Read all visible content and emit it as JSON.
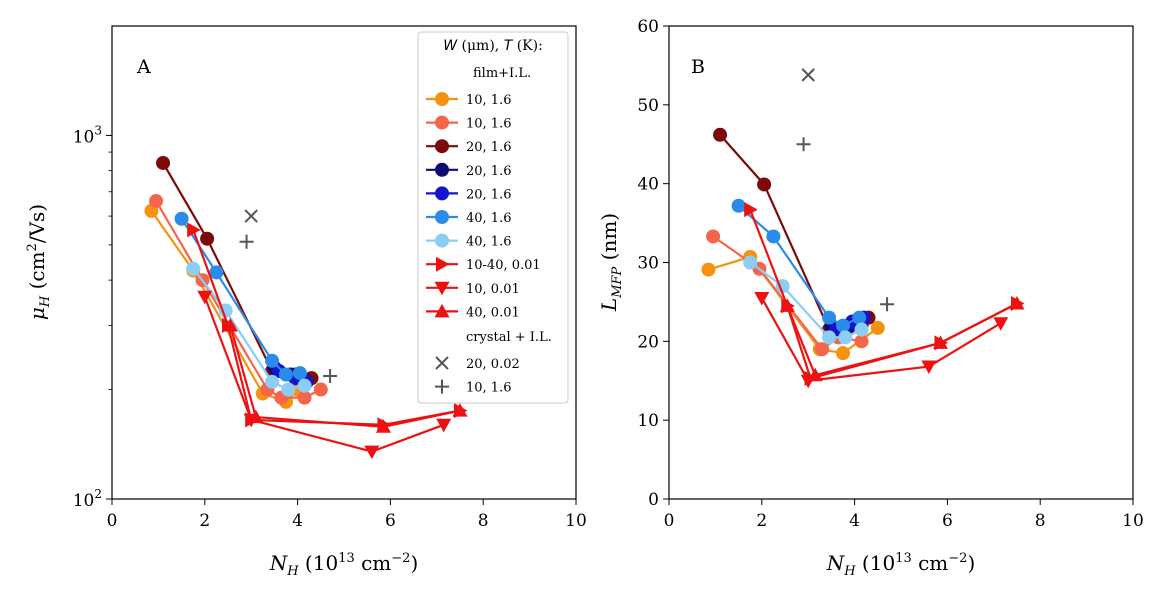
{
  "chart_data": [
    {
      "type": "line",
      "panel_label": "A",
      "xlabel": "N_H (10^13 cm^-2)",
      "ylabel": "μ_H (cm²/Vs)",
      "xlim": [
        0,
        10
      ],
      "ylim": [
        100,
        2000
      ],
      "yscale": "log",
      "x_ticks": [
        "0",
        "2",
        "4",
        "6",
        "8",
        "10"
      ],
      "y_ticks": [
        {
          "value": 100,
          "base": "10",
          "exp": "2"
        },
        {
          "value": 1000,
          "base": "10",
          "exp": "3"
        }
      ],
      "grid": false,
      "legend_position": "top-right",
      "legend": {
        "title": "W (μm), T (K):",
        "group1_label": "film+I.L.",
        "group2_label": "crystal + I.L."
      },
      "series": [
        {
          "name": "10, 1.6",
          "color": "#f59310",
          "marker": "circle",
          "x": [
            0.85,
            1.75,
            3.25,
            3.75,
            4.0
          ],
          "y": [
            620,
            425,
            195,
            185,
            200
          ]
        },
        {
          "name": "10, 1.6",
          "color": "#f5654c",
          "marker": "circle",
          "x": [
            0.95,
            1.95,
            3.35,
            3.65,
            4.15,
            4.5
          ],
          "y": [
            660,
            400,
            200,
            190,
            190,
            200
          ]
        },
        {
          "name": "20, 1.6",
          "color": "#7d0a0a",
          "marker": "circle",
          "x": [
            1.1,
            2.05,
            3.45,
            3.95,
            4.3
          ],
          "y": [
            840,
            520,
            225,
            220,
            215
          ]
        },
        {
          "name": "20, 1.6",
          "color": "#0d0d70",
          "marker": "circle",
          "x": [
            3.5,
            3.85,
            4.1
          ],
          "y": [
            230,
            220,
            215
          ]
        },
        {
          "name": "20, 1.6",
          "color": "#1414cc",
          "marker": "circle",
          "x": [
            3.6,
            3.95,
            4.2
          ],
          "y": [
            225,
            215,
            210
          ]
        },
        {
          "name": "40, 1.6",
          "color": "#2a8ce8",
          "marker": "circle",
          "x": [
            1.5,
            2.25,
            3.45,
            3.75,
            4.05
          ],
          "y": [
            590,
            420,
            240,
            220,
            222
          ]
        },
        {
          "name": "40, 1.6",
          "color": "#8ccdf5",
          "marker": "circle",
          "x": [
            1.75,
            2.45,
            3.45,
            3.8,
            4.15
          ],
          "y": [
            430,
            330,
            210,
            200,
            205
          ]
        },
        {
          "name": "10-40, 0.01",
          "color": "#ee1111",
          "marker": "triangle-right",
          "x": [
            1.75,
            2.5,
            3.0,
            5.85,
            7.5
          ],
          "y": [
            550,
            300,
            165,
            160,
            175
          ]
        },
        {
          "name": "10, 0.01",
          "color": "#ee1111",
          "marker": "triangle-down",
          "x": [
            2.0,
            3.0,
            5.6,
            7.15
          ],
          "y": [
            360,
            165,
            135,
            160
          ]
        },
        {
          "name": "40, 0.01",
          "color": "#ee1111",
          "marker": "triangle-up",
          "x": [
            2.55,
            3.1,
            5.85,
            7.5
          ],
          "y": [
            300,
            168,
            158,
            175
          ]
        },
        {
          "name": "20, 0.02",
          "color": "#555555",
          "marker": "x",
          "line": false,
          "x": [
            3.0
          ],
          "y": [
            600
          ]
        },
        {
          "name": "10, 1.6",
          "color": "#555555",
          "marker": "plus",
          "line": false,
          "x": [
            2.9,
            4.7
          ],
          "y": [
            510,
            218
          ]
        }
      ]
    },
    {
      "type": "line",
      "panel_label": "B",
      "xlabel": "N_H (10^13 cm^-2)",
      "ylabel": "L_MFP (nm)",
      "xlim": [
        0,
        10
      ],
      "ylim": [
        0,
        60
      ],
      "x_ticks": [
        "0",
        "2",
        "4",
        "6",
        "8",
        "10"
      ],
      "y_ticks": [
        "0",
        "10",
        "20",
        "30",
        "40",
        "50",
        "60"
      ],
      "grid": false,
      "series": [
        {
          "name": "10, 1.6",
          "color": "#f59310",
          "marker": "circle",
          "x": [
            0.85,
            1.75,
            3.25,
            3.75,
            4.5
          ],
          "y": [
            29.1,
            30.7,
            19.0,
            18.5,
            21.7
          ]
        },
        {
          "name": "10, 1.6",
          "color": "#f5654c",
          "marker": "circle",
          "x": [
            0.95,
            1.95,
            3.3,
            3.65,
            4.15
          ],
          "y": [
            33.3,
            29.2,
            19.0,
            20.5,
            20.0
          ]
        },
        {
          "name": "20, 1.6",
          "color": "#7d0a0a",
          "marker": "circle",
          "x": [
            1.1,
            2.05,
            3.45,
            3.95,
            4.3
          ],
          "y": [
            46.2,
            39.9,
            21.5,
            22.5,
            23.0
          ]
        },
        {
          "name": "20, 1.6",
          "color": "#0d0d70",
          "marker": "circle",
          "x": [
            3.5,
            3.85,
            4.15
          ],
          "y": [
            22.0,
            21.5,
            22.0
          ]
        },
        {
          "name": "20, 1.6",
          "color": "#1414cc",
          "marker": "circle",
          "x": [
            3.6,
            3.95,
            4.2
          ],
          "y": [
            21.5,
            22.5,
            23.0
          ]
        },
        {
          "name": "40, 1.6",
          "color": "#2a8ce8",
          "marker": "circle",
          "x": [
            1.5,
            2.25,
            3.45,
            3.75,
            4.1
          ],
          "y": [
            37.2,
            33.3,
            23.0,
            22.0,
            23.0
          ]
        },
        {
          "name": "40, 1.6",
          "color": "#8ccdf5",
          "marker": "circle",
          "x": [
            1.75,
            2.45,
            3.45,
            3.8,
            4.15
          ],
          "y": [
            30.0,
            27.0,
            20.5,
            20.5,
            21.5
          ]
        },
        {
          "name": "10-40, 0.01",
          "color": "#ee1111",
          "marker": "triangle-right",
          "x": [
            1.75,
            2.55,
            3.05,
            5.85,
            7.5
          ],
          "y": [
            36.7,
            24.5,
            15.3,
            19.8,
            24.8
          ]
        },
        {
          "name": "10, 0.01",
          "color": "#ee1111",
          "marker": "triangle-down",
          "x": [
            2.0,
            3.0,
            5.6,
            7.15
          ],
          "y": [
            25.5,
            15.0,
            16.8,
            22.3
          ]
        },
        {
          "name": "40, 0.01",
          "color": "#ee1111",
          "marker": "triangle-up",
          "x": [
            2.55,
            3.15,
            5.85,
            7.5
          ],
          "y": [
            24.5,
            15.7,
            19.8,
            24.8
          ]
        },
        {
          "name": "20, 0.02",
          "color": "#555555",
          "marker": "x",
          "line": false,
          "x": [
            3.0
          ],
          "y": [
            53.8
          ]
        },
        {
          "name": "10, 1.6",
          "color": "#555555",
          "marker": "plus",
          "line": false,
          "x": [
            2.9,
            4.7
          ],
          "y": [
            45.0,
            24.7
          ]
        }
      ]
    }
  ]
}
